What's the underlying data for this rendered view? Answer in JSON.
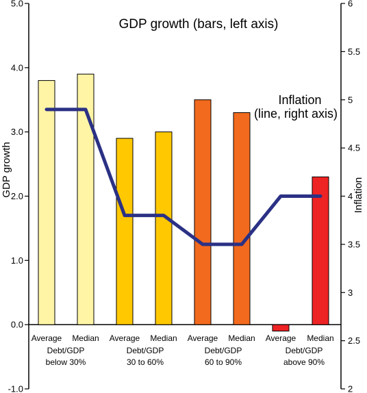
{
  "chart_data": {
    "type": "bar",
    "title": "GDP growth (bars, left axis)",
    "ylabel": "GDP growth",
    "y2label": "Inflation",
    "line_annotation": [
      "Inflation",
      "(line, right axis)"
    ],
    "ylim": [
      -1.0,
      5.0
    ],
    "y2lim": [
      2,
      6
    ],
    "y_ticks": [
      "-1.0",
      "0.0",
      "1.0",
      "2.0",
      "3.0",
      "4.0",
      "5.0"
    ],
    "y2_ticks": [
      "2",
      "2.5",
      "3",
      "3.5",
      "4",
      "4.5",
      "5",
      "5.5",
      "6"
    ],
    "categories": [
      "Average",
      "Median",
      "Average",
      "Median",
      "Average",
      "Median",
      "Average",
      "Median"
    ],
    "groups": [
      {
        "line1": "Debt/GDP",
        "line2": "below 30%"
      },
      {
        "line1": "Debt/GDP",
        "line2": "30 to 60%"
      },
      {
        "line1": "Debt/GDP",
        "line2": "60 to 90%"
      },
      {
        "line1": "Debt/GDP",
        "line2": "above 90%"
      }
    ],
    "series": [
      {
        "values": [
          3.8,
          3.9,
          2.9,
          3.0,
          3.5,
          3.3,
          -0.1,
          2.3
        ],
        "axis": "left",
        "kind": "bar"
      },
      {
        "values": [
          4.9,
          4.9,
          3.8,
          3.8,
          3.5,
          3.5,
          4.0,
          4.0
        ],
        "axis": "right",
        "kind": "line"
      }
    ],
    "bar_colors": [
      "#fff5a5",
      "#fff5a5",
      "#ffc800",
      "#ffc800",
      "#f26a1e",
      "#f26a1e",
      "#ee2324",
      "#ee2324"
    ],
    "line_color": "#2b3184",
    "grid": false,
    "legend": "none"
  }
}
